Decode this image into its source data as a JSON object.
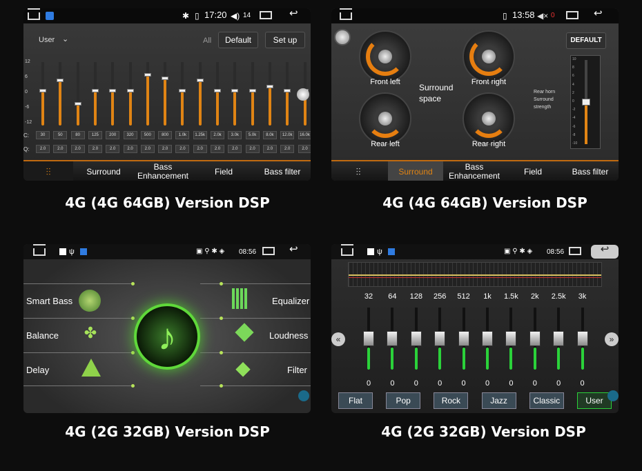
{
  "captions": [
    "4G (4G 64GB) Version DSP",
    "4G (4G 64GB) Version DSP",
    "4G (2G 32GB) Version DSP",
    "4G (2G 32GB) Version DSP"
  ],
  "p1": {
    "time": "17:20",
    "vol": "14",
    "preset": "User",
    "all": "All",
    "default_btn": "Default",
    "setup_btn": "Set up",
    "ylabels": [
      "12",
      "6",
      "0",
      "-6",
      "-12"
    ],
    "freq_prefix": "C:",
    "q_prefix": "Q:",
    "freqs": [
      "30",
      "50",
      "80",
      "125",
      "200",
      "320",
      "500",
      "800",
      "1.0k",
      "1.25k",
      "2.0k",
      "3.0k",
      "5.0k",
      "8.0k",
      "12.0k",
      "16.0k"
    ],
    "qs": [
      "2.0",
      "2.0",
      "2.0",
      "2.0",
      "2.0",
      "2.0",
      "2.0",
      "2.0",
      "2.0",
      "2.0",
      "2.0",
      "2.0",
      "2.0",
      "2.0",
      "2.0",
      "2.0"
    ],
    "levels": [
      0.55,
      0.72,
      0.35,
      0.55,
      0.55,
      0.55,
      0.8,
      0.75,
      0.55,
      0.72,
      0.55,
      0.55,
      0.55,
      0.62,
      0.55,
      0.55
    ],
    "tabs": [
      "Surround",
      "Bass Enhancement",
      "Field",
      "Bass filter"
    ]
  },
  "p2": {
    "time": "13:58",
    "vol": "0",
    "default_btn": "DEFAULT",
    "front_left": "Front left",
    "front_right": "Front right",
    "rear_left": "Rear left",
    "rear_right": "Rear right",
    "surround_space": "Surround space",
    "rear_horn": "Rear horn Surround strength",
    "scale": [
      "10",
      "8",
      "6",
      "4",
      "2",
      "0",
      "-2",
      "-4",
      "-6",
      "-8",
      "-10"
    ],
    "tabs": [
      "Surround",
      "Bass Enhancement",
      "Field",
      "Bass filter"
    ]
  },
  "p3": {
    "time": "08:56",
    "left": [
      "Smart Bass",
      "Balance",
      "Delay"
    ],
    "right": [
      "Equalizer",
      "Loudness",
      "Filter"
    ]
  },
  "p4": {
    "time": "08:56",
    "freqs": [
      "32",
      "64",
      "128",
      "256",
      "512",
      "1k",
      "1.5k",
      "2k",
      "2.5k",
      "3k"
    ],
    "vals": [
      "0",
      "0",
      "0",
      "0",
      "0",
      "0",
      "0",
      "0",
      "0",
      "0"
    ],
    "presets": [
      "Flat",
      "Pop",
      "Rock",
      "Jazz",
      "Classic",
      "User"
    ]
  },
  "colors": {
    "accent": "#e08414",
    "green": "#2bd23a",
    "surround_tab": "#e08414"
  }
}
